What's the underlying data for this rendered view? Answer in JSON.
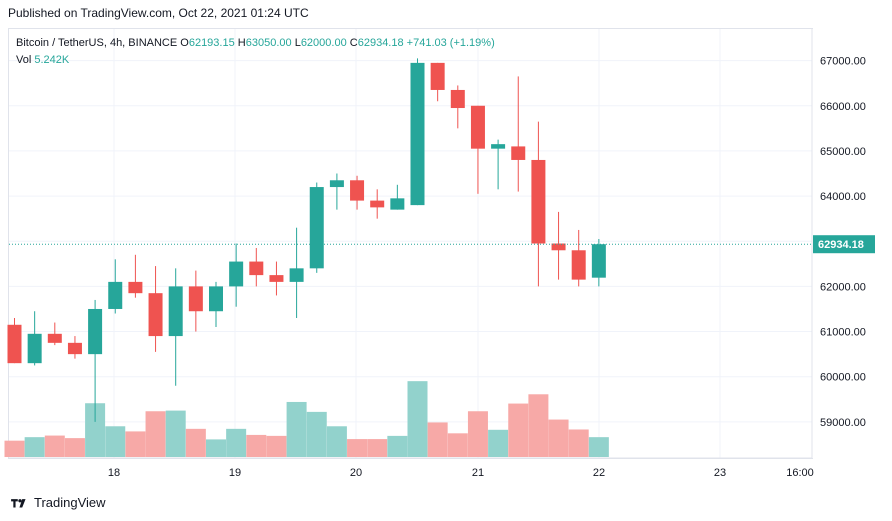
{
  "header": {
    "published": "Published on TradingView.com, Oct 22, 2021 01:24 UTC"
  },
  "legend": {
    "symbol": "Bitcoin / TetherUS, 4h, BINANCE",
    "o_label": "O",
    "o_value": "62193.15",
    "h_label": "H",
    "h_value": "63050.00",
    "l_label": "L",
    "l_value": "62000.00",
    "c_label": "C",
    "c_value": "62934.18",
    "change": "+741.03 (+1.19%)",
    "vol_label": "Vol",
    "vol_value": "5.242K"
  },
  "footer": {
    "brand": "TradingView"
  },
  "colors": {
    "up": "#26a69a",
    "down": "#ef5350",
    "up_vol": "#92d2cc",
    "down_vol": "#f7a9a7",
    "grid": "#f0f3fa",
    "price_tag": "#26a69a"
  },
  "chart_data": {
    "type": "candlestick",
    "ylim": [
      58200,
      67700
    ],
    "y_ticks": [
      59000,
      60000,
      61000,
      62000,
      63000,
      64000,
      65000,
      66000,
      67000
    ],
    "y_tick_labels": [
      "59000.00",
      "60000.00",
      "61000.00",
      "62000.00",
      "63000.00",
      "64000.00",
      "65000.00",
      "66000.00",
      "67000.00"
    ],
    "x_tick_labels": [
      "18",
      "19",
      "20",
      "21",
      "22",
      "23",
      "16:00"
    ],
    "current_price": 62934.18,
    "current_price_label": "62934.18",
    "candles": [
      {
        "o": 61150,
        "h": 61300,
        "l": 60300,
        "c": 60300
      },
      {
        "o": 60300,
        "h": 61450,
        "l": 60250,
        "c": 60950
      },
      {
        "o": 60950,
        "h": 61200,
        "l": 60700,
        "c": 60750
      },
      {
        "o": 60750,
        "h": 60900,
        "l": 60400,
        "c": 60500
      },
      {
        "o": 60500,
        "h": 61700,
        "l": 59000,
        "c": 61500
      },
      {
        "o": 61500,
        "h": 62600,
        "l": 61400,
        "c": 62100
      },
      {
        "o": 62100,
        "h": 62700,
        "l": 61750,
        "c": 61850
      },
      {
        "o": 61850,
        "h": 62450,
        "l": 60550,
        "c": 60900
      },
      {
        "o": 60900,
        "h": 62400,
        "l": 59800,
        "c": 62000
      },
      {
        "o": 62000,
        "h": 62350,
        "l": 61000,
        "c": 61450
      },
      {
        "o": 61450,
        "h": 62100,
        "l": 61100,
        "c": 62000
      },
      {
        "o": 62000,
        "h": 62950,
        "l": 61550,
        "c": 62550
      },
      {
        "o": 62550,
        "h": 62850,
        "l": 62000,
        "c": 62250
      },
      {
        "o": 62250,
        "h": 62550,
        "l": 61800,
        "c": 62100
      },
      {
        "o": 62100,
        "h": 63300,
        "l": 61300,
        "c": 62400
      },
      {
        "o": 62400,
        "h": 64300,
        "l": 62300,
        "c": 64200
      },
      {
        "o": 64200,
        "h": 64500,
        "l": 63700,
        "c": 64350
      },
      {
        "o": 64350,
        "h": 64450,
        "l": 63700,
        "c": 63900
      },
      {
        "o": 63900,
        "h": 64150,
        "l": 63500,
        "c": 63750
      },
      {
        "o": 63700,
        "h": 64250,
        "l": 63700,
        "c": 63950
      },
      {
        "o": 63800,
        "h": 67050,
        "l": 63800,
        "c": 66950
      },
      {
        "o": 66950,
        "h": 66950,
        "l": 66100,
        "c": 66350
      },
      {
        "o": 66350,
        "h": 66450,
        "l": 65500,
        "c": 65950
      },
      {
        "o": 66000,
        "h": 66000,
        "l": 64050,
        "c": 65050
      },
      {
        "o": 65050,
        "h": 65250,
        "l": 64150,
        "c": 65150
      },
      {
        "o": 65100,
        "h": 66650,
        "l": 64100,
        "c": 64800
      },
      {
        "o": 64800,
        "h": 65650,
        "l": 62000,
        "c": 62950
      },
      {
        "o": 62950,
        "h": 63650,
        "l": 62150,
        "c": 62800
      },
      {
        "o": 62800,
        "h": 63250,
        "l": 62000,
        "c": 62150
      },
      {
        "o": 62193.15,
        "h": 63050,
        "l": 62000,
        "c": 62934.18
      }
    ],
    "volume_relative": [
      0.51,
      0.62,
      0.67,
      0.59,
      1.68,
      0.96,
      0.8,
      1.43,
      1.45,
      0.88,
      0.55,
      0.88,
      0.69,
      0.66,
      1.72,
      1.41,
      0.96,
      0.56,
      0.56,
      0.66,
      2.37,
      1.08,
      0.74,
      1.43,
      0.85,
      1.67,
      1.96,
      1.17,
      0.86,
      0.62
    ]
  }
}
